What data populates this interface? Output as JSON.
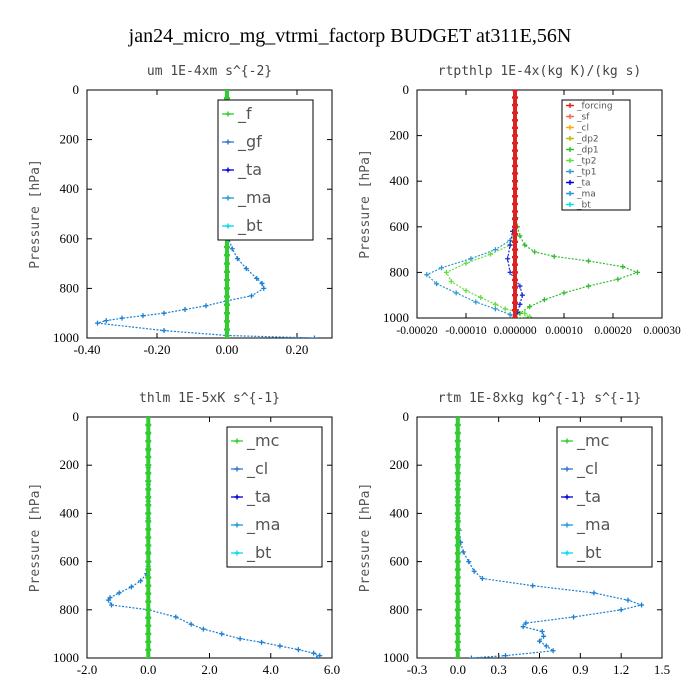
{
  "figure_title": "jan24_micro_mg_vtrmi_factorp  BUDGET at311E,56N",
  "chart_data": [
    {
      "type": "line",
      "title": "um  1E-4xm s^{-2}",
      "ylabel": "Pressure [hPa]",
      "xlim": [
        -0.4,
        0.3
      ],
      "ylim": [
        1000,
        0
      ],
      "xticks": [
        "-0.40",
        "-0.20",
        "0.00",
        "0.20"
      ],
      "xtick_values": [
        -0.4,
        -0.2,
        0.0,
        0.2
      ],
      "yticks": [
        "0",
        "200",
        "400",
        "600",
        "800",
        "1000"
      ],
      "ytick_values": [
        0,
        200,
        400,
        600,
        800,
        1000
      ],
      "legend": [
        "_f",
        "_gf",
        "_ta",
        "_ma",
        "_bt"
      ],
      "legend_colors": [
        "#33cc33",
        "#3377cc",
        "#0000dd",
        "#2299dd",
        "#00ddee"
      ],
      "series": [
        {
          "name": "_ta",
          "color": "#1a7fd4",
          "x": [
            0.0,
            0.0,
            0.0,
            0.0,
            0.0,
            0.0,
            0.0,
            0.0,
            0.0,
            0.0,
            0.0,
            0.0,
            0.005,
            0.015,
            0.03,
            0.055,
            0.085,
            0.1,
            0.105,
            0.07,
            0.0,
            -0.06,
            -0.12,
            -0.18,
            -0.24,
            -0.3,
            -0.345,
            -0.37,
            -0.18,
            0.0,
            0.25
          ],
          "y": [
            0,
            35,
            70,
            105,
            140,
            175,
            210,
            245,
            280,
            315,
            350,
            380,
            600,
            640,
            680,
            720,
            760,
            780,
            800,
            830,
            850,
            870,
            885,
            900,
            910,
            920,
            930,
            940,
            970,
            990,
            1000
          ]
        },
        {
          "name": "_f",
          "color": "#33cc33",
          "x": [
            0,
            0,
            0,
            0,
            0,
            0,
            0,
            0,
            0,
            0,
            0,
            0,
            0,
            0,
            0,
            0,
            0,
            0,
            0,
            0,
            0,
            0,
            0,
            0,
            0,
            0,
            0,
            0,
            0,
            0,
            0
          ],
          "y": [
            0,
            33,
            66,
            100,
            133,
            166,
            200,
            233,
            266,
            300,
            333,
            366,
            400,
            433,
            466,
            500,
            533,
            566,
            600,
            633,
            666,
            700,
            733,
            766,
            800,
            833,
            866,
            900,
            933,
            966,
            1000
          ]
        }
      ]
    },
    {
      "type": "line",
      "title": "rtpthlp  1E-4x(kg K)/(kg s)",
      "ylabel": "Pressure [hPa]",
      "xlim": [
        -0.0002,
        0.0003
      ],
      "ylim": [
        1000,
        0
      ],
      "xticks": [
        "-0.00020",
        "-0.00010",
        "0.000000",
        "0.00010",
        "0.00020",
        "0.00030"
      ],
      "xtick_values": [
        -0.0002,
        -0.0001,
        0.0,
        0.0001,
        0.0002,
        0.0003
      ],
      "yticks": [
        "0",
        "200",
        "400",
        "600",
        "800",
        "1000"
      ],
      "ytick_values": [
        0,
        200,
        400,
        600,
        800,
        1000
      ],
      "legend": [
        "_forcing",
        "_sf",
        "_cl",
        "_dp2",
        "_dp1",
        "_tp2",
        "_tp1",
        "_ta",
        "_ma",
        "_bt"
      ],
      "legend_colors": [
        "#dd2222",
        "#ee6655",
        "#ffaa00",
        "#bbbb00",
        "#33bb33",
        "#66dd44",
        "#3399cc",
        "#0000cc",
        "#2299dd",
        "#00ddee"
      ],
      "series": [
        {
          "name": "_dp1",
          "color": "#33bb33",
          "x": [
            0.0,
            0.0,
            2e-06,
            5e-06,
            1e-05,
            2e-05,
            4e-05,
            8e-05,
            0.00015,
            0.00022,
            0.00025,
            0.00021,
            0.00015,
            0.0001,
            6e-05,
            3e-05,
            1e-05,
            0.0
          ],
          "y": [
            0,
            500,
            560,
            600,
            640,
            680,
            710,
            730,
            750,
            775,
            800,
            830,
            860,
            890,
            920,
            950,
            980,
            1000
          ]
        },
        {
          "name": "_tp1",
          "color": "#3399cc",
          "x": [
            0.0,
            0.0,
            -1e-05,
            -4e-05,
            -9e-05,
            -0.00015,
            -0.00018,
            -0.00016,
            -0.00012,
            -8e-05,
            -4e-05,
            -1e-05,
            0.0
          ],
          "y": [
            0,
            620,
            660,
            700,
            740,
            780,
            810,
            850,
            890,
            930,
            960,
            985,
            1000
          ]
        },
        {
          "name": "_tp2",
          "color": "#66dd44",
          "x": [
            0.0,
            0.0,
            -1e-05,
            -5e-05,
            -0.0001,
            -0.00014,
            -0.00013,
            -0.0001,
            -7e-05,
            -4e-05,
            -2e-05,
            2e-05,
            3e-05,
            0.0
          ],
          "y": [
            0,
            620,
            680,
            720,
            760,
            800,
            840,
            880,
            910,
            940,
            960,
            980,
            995,
            1000
          ]
        },
        {
          "name": "_ta",
          "color": "#1a2fd4",
          "x": [
            0.0,
            0.0,
            -5e-06,
            -1e-05,
            -1.5e-05,
            -1e-05,
            0.0,
            1e-05,
            1.5e-05,
            1e-05,
            5e-06,
            0.0
          ],
          "y": [
            0,
            560,
            620,
            680,
            740,
            800,
            830,
            860,
            900,
            940,
            975,
            1000
          ]
        },
        {
          "name": "_forcing",
          "color": "#dd2222",
          "x": [
            0,
            0,
            0,
            0,
            0,
            0,
            0,
            0,
            0,
            0,
            0,
            0,
            0,
            0,
            0,
            0,
            0,
            0,
            0,
            0,
            0,
            0,
            0,
            0,
            0,
            0,
            0,
            0,
            0,
            0,
            0
          ],
          "y": [
            0,
            33,
            66,
            100,
            133,
            166,
            200,
            233,
            266,
            300,
            333,
            366,
            400,
            433,
            466,
            500,
            533,
            566,
            600,
            633,
            666,
            700,
            733,
            766,
            800,
            833,
            866,
            900,
            933,
            966,
            1000
          ]
        }
      ]
    },
    {
      "type": "line",
      "title": "thlm  1E-5xK s^{-1}",
      "ylabel": "Pressure [hPa]",
      "xlim": [
        -2.0,
        6.0
      ],
      "ylim": [
        1000,
        0
      ],
      "xticks": [
        "-2.0",
        "0.0",
        "2.0",
        "4.0",
        "6.0"
      ],
      "xtick_values": [
        -2.0,
        0.0,
        2.0,
        4.0,
        6.0
      ],
      "yticks": [
        "0",
        "200",
        "400",
        "600",
        "800",
        "1000"
      ],
      "ytick_values": [
        0,
        200,
        400,
        600,
        800,
        1000
      ],
      "legend": [
        "_mc",
        "_cl",
        "_ta",
        "_ma",
        "_bt"
      ],
      "legend_colors": [
        "#33cc33",
        "#3377cc",
        "#0000dd",
        "#2299dd",
        "#00ddee"
      ],
      "series": [
        {
          "name": "_ta",
          "color": "#1a7fd4",
          "x": [
            0.0,
            0.0,
            0.0,
            0.0,
            0.0,
            0.0,
            0.0,
            0.0,
            0.0,
            -0.05,
            -0.25,
            -0.55,
            -0.95,
            -1.25,
            -1.3,
            -1.2,
            0.0,
            0.9,
            1.4,
            1.8,
            2.4,
            3.0,
            3.7,
            4.3,
            4.9,
            5.4,
            5.6,
            5.5
          ],
          "y": [
            0,
            70,
            140,
            210,
            280,
            350,
            420,
            560,
            620,
            650,
            680,
            705,
            730,
            750,
            760,
            780,
            800,
            830,
            860,
            880,
            900,
            920,
            935,
            950,
            965,
            980,
            990,
            1000
          ]
        },
        {
          "name": "_mc",
          "color": "#33cc33",
          "x": [
            0,
            0,
            0,
            0,
            0,
            0,
            0,
            0,
            0,
            0,
            0,
            0,
            0,
            0,
            0,
            0,
            0,
            0,
            0,
            0,
            0,
            0,
            0,
            0,
            0,
            0,
            0,
            0,
            0,
            0,
            0
          ],
          "y": [
            0,
            33,
            66,
            100,
            133,
            166,
            200,
            233,
            266,
            300,
            333,
            366,
            400,
            433,
            466,
            500,
            533,
            566,
            600,
            633,
            666,
            700,
            733,
            766,
            800,
            833,
            866,
            900,
            933,
            966,
            1000
          ]
        }
      ]
    },
    {
      "type": "line",
      "title": "rtm  1E-8xkg kg^{-1} s^{-1}",
      "ylabel": "Pressure [hPa]",
      "xlim": [
        -0.3,
        1.5
      ],
      "ylim": [
        1000,
        0
      ],
      "xticks": [
        "-0.3",
        "0.0",
        "0.3",
        "0.6",
        "0.9",
        "1.2",
        "1.5"
      ],
      "xtick_values": [
        -0.3,
        0.0,
        0.3,
        0.6,
        0.9,
        1.2,
        1.5
      ],
      "yticks": [
        "0",
        "200",
        "400",
        "600",
        "800",
        "1000"
      ],
      "ytick_values": [
        0,
        200,
        400,
        600,
        800,
        1000
      ],
      "legend": [
        "_mc",
        "_cl",
        "_ta",
        "_ma",
        "_bt"
      ],
      "legend_colors": [
        "#33cc33",
        "#3377cc",
        "#0000dd",
        "#2299dd",
        "#00ddee"
      ],
      "series": [
        {
          "name": "_ta",
          "color": "#1a7fd4",
          "x": [
            0.0,
            0.0,
            0.0,
            0.0,
            0.0,
            0.0,
            0.0,
            0.01,
            0.02,
            0.04,
            0.08,
            0.12,
            0.18,
            0.55,
            1.0,
            1.25,
            1.35,
            1.2,
            0.85,
            0.5,
            0.48,
            0.62,
            0.63,
            0.6,
            0.65,
            0.7,
            0.35,
            0.1
          ],
          "y": [
            0,
            70,
            140,
            210,
            280,
            350,
            420,
            470,
            520,
            560,
            600,
            640,
            670,
            700,
            730,
            760,
            780,
            800,
            830,
            855,
            870,
            890,
            910,
            930,
            950,
            970,
            990,
            1000
          ]
        },
        {
          "name": "_mc",
          "color": "#33cc33",
          "x": [
            0,
            0,
            0,
            0,
            0,
            0,
            0,
            0,
            0,
            0,
            0,
            0,
            0,
            0,
            0,
            0,
            0,
            0,
            0,
            0,
            0,
            0,
            0,
            0,
            0,
            0,
            0,
            0,
            0,
            0,
            0
          ],
          "y": [
            0,
            33,
            66,
            100,
            133,
            166,
            200,
            233,
            266,
            300,
            333,
            366,
            400,
            433,
            466,
            500,
            533,
            566,
            600,
            633,
            666,
            700,
            733,
            766,
            800,
            833,
            866,
            900,
            933,
            966,
            1000
          ]
        }
      ]
    }
  ]
}
